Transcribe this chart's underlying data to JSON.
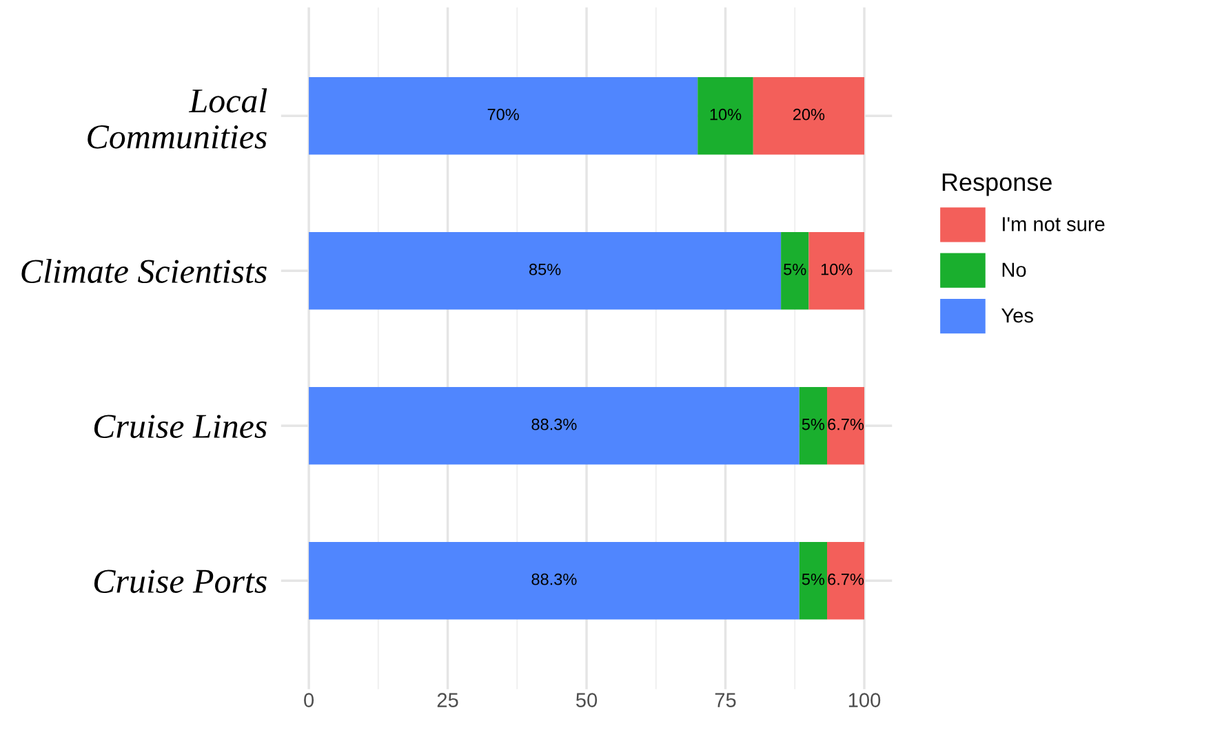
{
  "chart_data": {
    "type": "bar",
    "orientation": "horizontal",
    "stacked": true,
    "categories": [
      "Local\nCommunities",
      "Climate Scientists",
      "Cruise Lines",
      "Cruise Ports"
    ],
    "series": [
      {
        "name": "Yes",
        "color": "#5086fe",
        "values": [
          70,
          85,
          88.3,
          88.3
        ],
        "value_labels": [
          "70%",
          "85%",
          "88.3%",
          "88.3%"
        ]
      },
      {
        "name": "No",
        "color": "#1aaf2e",
        "values": [
          10,
          5,
          5,
          5
        ],
        "value_labels": [
          "10%",
          "5%",
          "5%",
          "5%"
        ]
      },
      {
        "name": "I'm not sure",
        "color": "#f35f5a",
        "values": [
          20,
          10,
          6.7,
          6.7
        ],
        "value_labels": [
          "20%",
          "10%",
          "6.7%",
          "6.7%"
        ]
      }
    ],
    "xlim": [
      -5,
      105
    ],
    "xticks": [
      0,
      25,
      50,
      75,
      100
    ],
    "legend_title": "Response",
    "legend": "right",
    "grid": true
  }
}
